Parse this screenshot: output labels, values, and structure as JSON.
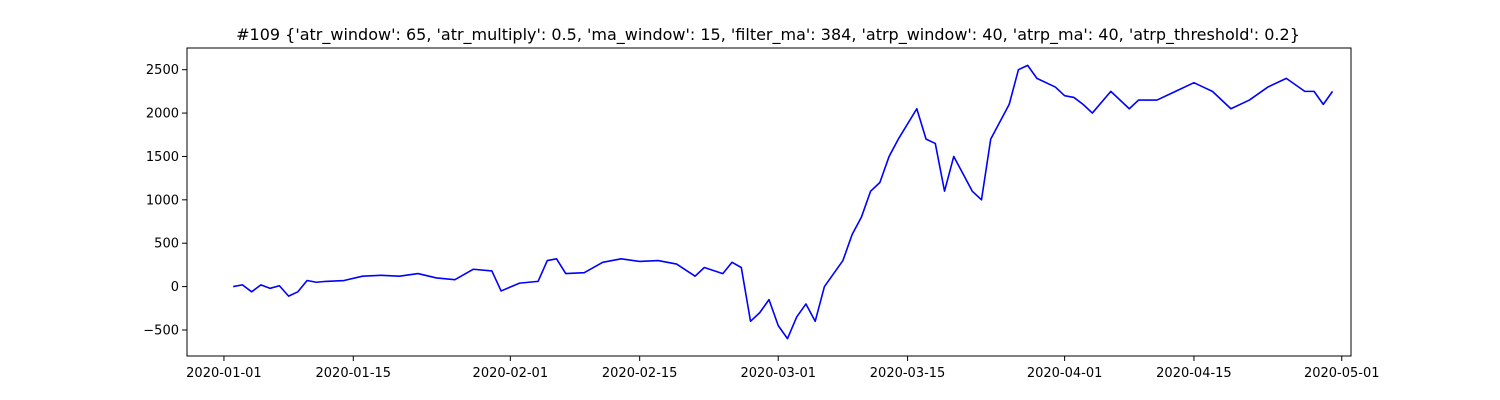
{
  "chart_data": {
    "type": "line",
    "title": "#109 {'atr_window': 65, 'atr_multiply': 0.5, 'ma_window': 15, 'filter_ma': 384, 'atrp_window': 40, 'atrp_ma': 40, 'atrp_threshold': 0.2}",
    "xlabel": "",
    "ylabel": "",
    "x_scale": "date",
    "xlim": [
      "2019-12-28",
      "2020-05-02"
    ],
    "ylim": [
      -800,
      2750
    ],
    "grid": false,
    "legend": "none",
    "color": "#0000ff",
    "x_ticks": [
      "2020-01-01",
      "2020-01-15",
      "2020-02-01",
      "2020-02-15",
      "2020-03-01",
      "2020-03-15",
      "2020-04-01",
      "2020-04-15",
      "2020-05-01"
    ],
    "y_ticks": [
      -500,
      0,
      500,
      1000,
      1500,
      2000,
      2500
    ],
    "series": [
      {
        "x": [
          "2020-01-02",
          "2020-01-03",
          "2020-01-04",
          "2020-01-05",
          "2020-01-06",
          "2020-01-07",
          "2020-01-08",
          "2020-01-09",
          "2020-01-10",
          "2020-01-11",
          "2020-01-12",
          "2020-01-14",
          "2020-01-16",
          "2020-01-18",
          "2020-01-20",
          "2020-01-22",
          "2020-01-24",
          "2020-01-26",
          "2020-01-28",
          "2020-01-30",
          "2020-01-31",
          "2020-02-02",
          "2020-02-04",
          "2020-02-05",
          "2020-02-06",
          "2020-02-07",
          "2020-02-09",
          "2020-02-11",
          "2020-02-13",
          "2020-02-15",
          "2020-02-17",
          "2020-02-19",
          "2020-02-21",
          "2020-02-22",
          "2020-02-24",
          "2020-02-25",
          "2020-02-26",
          "2020-02-27",
          "2020-02-28",
          "2020-02-29",
          "2020-03-01",
          "2020-03-02",
          "2020-03-03",
          "2020-03-04",
          "2020-03-05",
          "2020-03-06",
          "2020-03-07",
          "2020-03-08",
          "2020-03-09",
          "2020-03-10",
          "2020-03-11",
          "2020-03-12",
          "2020-03-13",
          "2020-03-14",
          "2020-03-16",
          "2020-03-17",
          "2020-03-18",
          "2020-03-19",
          "2020-03-20",
          "2020-03-21",
          "2020-03-22",
          "2020-03-23",
          "2020-03-24",
          "2020-03-25",
          "2020-03-26",
          "2020-03-27",
          "2020-03-28",
          "2020-03-29",
          "2020-03-31",
          "2020-04-01",
          "2020-04-02",
          "2020-04-03",
          "2020-04-04",
          "2020-04-06",
          "2020-04-08",
          "2020-04-09",
          "2020-04-11",
          "2020-04-13",
          "2020-04-15",
          "2020-04-16",
          "2020-04-17",
          "2020-04-19",
          "2020-04-21",
          "2020-04-23",
          "2020-04-25",
          "2020-04-27",
          "2020-04-28",
          "2020-04-29",
          "2020-04-30"
        ],
        "y": [
          0,
          20,
          -60,
          20,
          -20,
          10,
          -110,
          -60,
          70,
          50,
          60,
          70,
          120,
          130,
          120,
          150,
          100,
          80,
          200,
          180,
          -50,
          40,
          60,
          300,
          320,
          150,
          160,
          280,
          320,
          290,
          300,
          260,
          120,
          220,
          150,
          280,
          220,
          -400,
          -300,
          -150,
          -450,
          -600,
          -350,
          -200,
          -400,
          0,
          150,
          300,
          600,
          800,
          1100,
          1200,
          1500,
          1700,
          2050,
          1700,
          1650,
          1100,
          1500,
          1300,
          1100,
          1000,
          1700,
          1900,
          2100,
          2500,
          2550,
          2400,
          2300,
          2200,
          2180,
          2100,
          2000,
          2250,
          2050,
          2150,
          2150,
          2250,
          2350,
          2300,
          2250,
          2050,
          2150,
          2300,
          2400,
          2250,
          2250,
          2100,
          2250
        ]
      }
    ]
  }
}
